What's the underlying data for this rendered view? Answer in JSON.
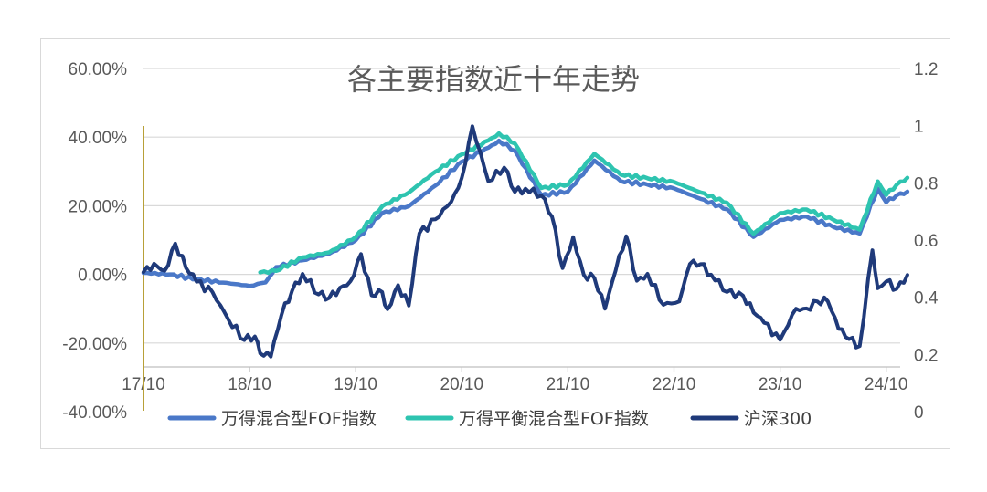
{
  "chart_data": {
    "type": "line",
    "title": "各主要指数近十年走势",
    "x_tick_labels": [
      "17/10",
      "18/10",
      "19/10",
      "20/10",
      "21/10",
      "22/10",
      "23/10",
      "24/10"
    ],
    "y_left_tick_labels": [
      "60.00%",
      "40.00%",
      "20.00%",
      "0.00%",
      "-20.00%",
      "-40.00%"
    ],
    "y_left_range": [
      -40,
      60
    ],
    "y_right_tick_labels": [
      "1.2",
      "1",
      "0.8",
      "0.6",
      "0.4",
      "0.2",
      "0"
    ],
    "y_right_range": [
      0,
      1.2
    ],
    "grid": true,
    "legend_position": "bottom",
    "colors": {
      "fof_mixed": "#4a78c8",
      "fof_balanced": "#2ec4b0",
      "hs300": "#1f3a7a",
      "grid": "#d9d9d9",
      "marker_line": "#b8a038"
    },
    "series": [
      {
        "name": "万得混合型FOF指数",
        "key": "fof_mixed",
        "axis": "left",
        "x": [
          2017.75,
          2018.0,
          2018.25,
          2018.5,
          2018.75,
          2018.9,
          2019.0,
          2019.25,
          2019.5,
          2019.75,
          2020.0,
          2020.25,
          2020.5,
          2020.75,
          2021.0,
          2021.1,
          2021.25,
          2021.5,
          2021.75,
          2022.0,
          2022.25,
          2022.5,
          2022.75,
          2023.0,
          2023.25,
          2023.5,
          2023.75,
          2024.0,
          2024.25,
          2024.5,
          2024.67,
          2024.75,
          2024.85,
          2024.95
        ],
        "y": [
          0.5,
          0.0,
          -1.5,
          -2.5,
          -3.5,
          -2.5,
          2.0,
          4.0,
          6.0,
          10.0,
          18.0,
          20.0,
          26.0,
          33.0,
          37.0,
          39.0,
          36.0,
          23.0,
          24.0,
          33.0,
          27.0,
          26.0,
          25.0,
          22.0,
          19.0,
          11.0,
          16.0,
          17.0,
          14.0,
          12.0,
          25.0,
          21.0,
          23.0,
          24.0
        ]
      },
      {
        "name": "万得平衡混合型FOF指数",
        "key": "fof_balanced",
        "axis": "left",
        "x": [
          2018.85,
          2019.0,
          2019.25,
          2019.5,
          2019.75,
          2020.0,
          2020.25,
          2020.5,
          2020.75,
          2021.0,
          2021.1,
          2021.25,
          2021.5,
          2021.75,
          2022.0,
          2022.25,
          2022.5,
          2022.75,
          2023.0,
          2023.25,
          2023.5,
          2023.75,
          2024.0,
          2024.25,
          2024.5,
          2024.67,
          2024.75,
          2024.85,
          2024.95
        ],
        "y": [
          0.5,
          1.0,
          5.0,
          6.5,
          11.0,
          20.0,
          24.0,
          30.0,
          35.0,
          39.0,
          41.0,
          38.0,
          25.0,
          26.0,
          35.0,
          29.0,
          28.0,
          27.0,
          24.0,
          21.0,
          12.0,
          18.0,
          19.0,
          16.0,
          13.0,
          27.0,
          23.0,
          26.0,
          28.0
        ]
      },
      {
        "name": "沪深300",
        "key": "hs300",
        "axis": "left",
        "x": [
          2017.75,
          2017.85,
          2017.95,
          2018.05,
          2018.15,
          2018.25,
          2018.4,
          2018.55,
          2018.7,
          2018.8,
          2018.85,
          2018.95,
          2019.05,
          2019.15,
          2019.25,
          2019.4,
          2019.5,
          2019.6,
          2019.7,
          2019.8,
          2019.9,
          2020.0,
          2020.05,
          2020.15,
          2020.25,
          2020.35,
          2020.5,
          2020.65,
          2020.75,
          2020.85,
          2021.0,
          2021.15,
          2021.25,
          2021.35,
          2021.5,
          2021.6,
          2021.7,
          2021.8,
          2021.9,
          2022.0,
          2022.1,
          2022.2,
          2022.3,
          2022.4,
          2022.5,
          2022.65,
          2022.8,
          2022.9,
          2023.0,
          2023.1,
          2023.25,
          2023.4,
          2023.5,
          2023.6,
          2023.75,
          2023.9,
          2024.0,
          2024.1,
          2024.2,
          2024.3,
          2024.4,
          2024.5,
          2024.62,
          2024.67,
          2024.75,
          2024.85,
          2024.95
        ],
        "y": [
          0.5,
          3.0,
          1.0,
          9.0,
          2.0,
          -2.0,
          -5.0,
          -13.0,
          -19.0,
          -18.0,
          -23.0,
          -24.0,
          -12.0,
          -5.0,
          0.0,
          -6.0,
          -7.0,
          -4.0,
          -2.0,
          6.0,
          -6.0,
          -5.0,
          -10.0,
          -3.0,
          -9.0,
          12.0,
          16.0,
          21.0,
          28.0,
          43.0,
          27.0,
          31.0,
          24.0,
          25.0,
          23.0,
          17.0,
          2.0,
          11.0,
          0.0,
          -1.0,
          -10.0,
          1.0,
          11.0,
          -2.0,
          0.0,
          -9.0,
          -8.0,
          3.0,
          3.0,
          0.0,
          -5.0,
          -6.0,
          -11.0,
          -14.0,
          -19.0,
          -10.0,
          -10.0,
          -8.0,
          -8.0,
          -16.0,
          -19.0,
          -21.0,
          7.0,
          -4.0,
          -2.0,
          -4.0,
          0.0
        ]
      }
    ]
  },
  "legend": {
    "items": [
      {
        "label": "万得混合型FOF指数",
        "color": "#4a78c8"
      },
      {
        "label": "万得平衡混合型FOF指数",
        "color": "#2ec4b0"
      },
      {
        "label": "沪深300",
        "color": "#1f3a7a"
      }
    ]
  }
}
